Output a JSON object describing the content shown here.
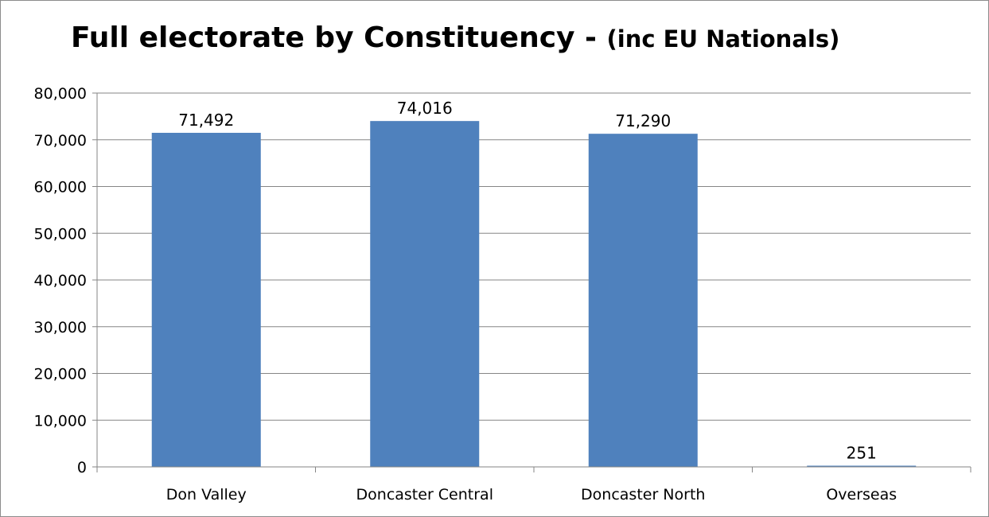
{
  "chart_data": {
    "type": "bar",
    "title": "Full electorate by Constituency - ",
    "title_suffix": "(inc EU Nationals)",
    "categories": [
      "Don Valley",
      "Doncaster Central",
      "Doncaster North",
      "Overseas"
    ],
    "values": [
      71492,
      74016,
      71290,
      251
    ],
    "data_labels": [
      "71,492",
      "74,016",
      "71,290",
      "251"
    ],
    "ylim": [
      0,
      80000
    ],
    "yticks": [
      0,
      10000,
      20000,
      30000,
      40000,
      50000,
      60000,
      70000,
      80000
    ],
    "ytick_labels": [
      "0",
      "10,000",
      "20,000",
      "30,000",
      "40,000",
      "50,000",
      "60,000",
      "70,000",
      "80,000"
    ],
    "xlabel": "",
    "ylabel": "",
    "grid": true,
    "legend": "none",
    "bar_color": "#4F81BD",
    "grid_color": "#868686"
  }
}
